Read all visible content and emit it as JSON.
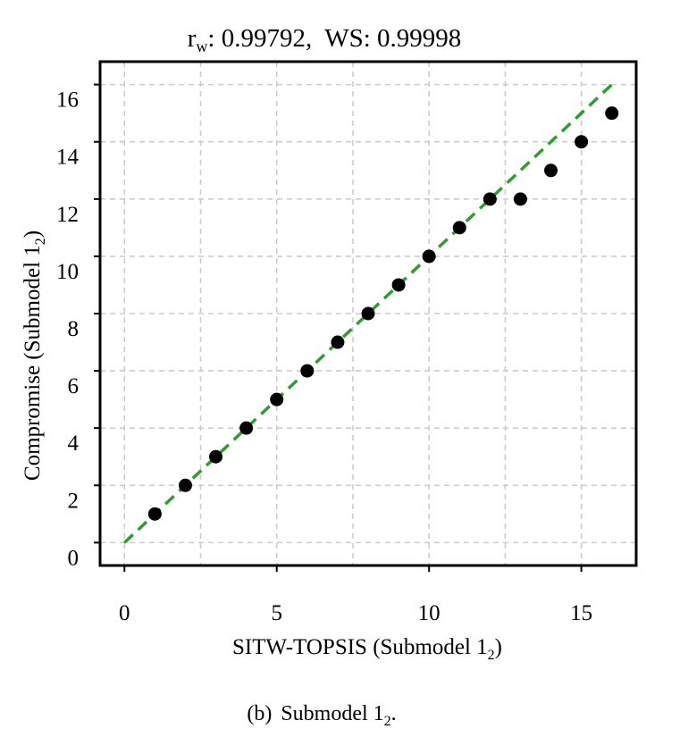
{
  "chart_data": {
    "type": "scatter",
    "title_parts": {
      "r_symbol": "r",
      "r_subscript": "w",
      "r_value": ": 0.99792,",
      "ws": "WS: 0.99998"
    },
    "xlabel": "SITW-TOPSIS (Submodel 1",
    "xlabel_sub": "2",
    "xlabel_close": ")",
    "ylabel": "Compromise (Submodel 1",
    "ylabel_sub": "2",
    "ylabel_close": ")",
    "xlim": [
      -0.8,
      16.8
    ],
    "ylim": [
      -0.8,
      16.8
    ],
    "x_ticks": [
      0,
      5,
      10,
      15
    ],
    "y_ticks": [
      0,
      2,
      4,
      6,
      8,
      10,
      12,
      14,
      16
    ],
    "x_grid": [
      0,
      2.5,
      5,
      7.5,
      10,
      12.5,
      15
    ],
    "y_grid": [
      0,
      2,
      4,
      6,
      8,
      10,
      12,
      14,
      16
    ],
    "grid": true,
    "points": [
      {
        "x": 1,
        "y": 1
      },
      {
        "x": 2,
        "y": 2
      },
      {
        "x": 3,
        "y": 3
      },
      {
        "x": 4,
        "y": 4
      },
      {
        "x": 5,
        "y": 5
      },
      {
        "x": 6,
        "y": 6
      },
      {
        "x": 7,
        "y": 7
      },
      {
        "x": 8,
        "y": 8
      },
      {
        "x": 9,
        "y": 9
      },
      {
        "x": 10,
        "y": 10
      },
      {
        "x": 11,
        "y": 11
      },
      {
        "x": 12,
        "y": 12
      },
      {
        "x": 13,
        "y": 12
      },
      {
        "x": 14,
        "y": 13
      },
      {
        "x": 15,
        "y": 14
      },
      {
        "x": 16,
        "y": 15
      }
    ],
    "reference_line": {
      "x": [
        0,
        16
      ],
      "y": [
        0,
        16
      ],
      "style": "dashed"
    },
    "colors": {
      "points": "#000000",
      "reference_line": "#2ca02c",
      "grid": "#cccccc",
      "axes": "#000000"
    }
  },
  "caption": {
    "label": "(b)",
    "text": "Submodel 1",
    "sub": "2",
    "end": "."
  }
}
